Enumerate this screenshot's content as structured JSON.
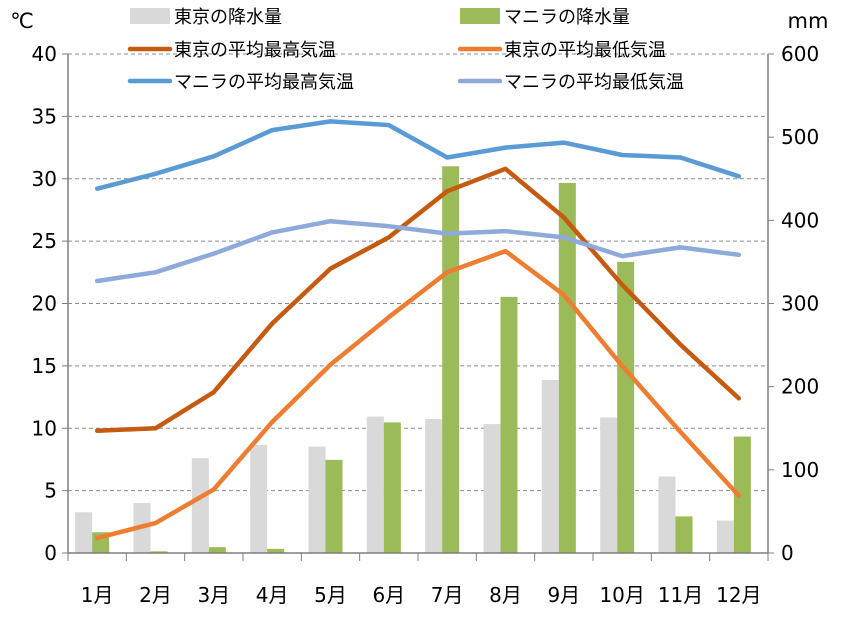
{
  "chart_data": {
    "type": "bar",
    "left_unit": "℃",
    "right_unit": "mm",
    "categories": [
      "1月",
      "2月",
      "3月",
      "4月",
      "5月",
      "6月",
      "7月",
      "8月",
      "9月",
      "10月",
      "11月",
      "12月"
    ],
    "left_axis": {
      "min": 0,
      "max": 40,
      "ticks": [
        0,
        5,
        10,
        15,
        20,
        25,
        30,
        35,
        40
      ]
    },
    "right_axis": {
      "min": 0,
      "max": 600,
      "ticks": [
        0,
        100,
        200,
        300,
        400,
        500,
        600
      ]
    },
    "grid": true,
    "legend_position": "top",
    "bar_series": [
      {
        "name": "東京の降水量",
        "color": "#d9d9d9",
        "axis": "right",
        "values": [
          49,
          60,
          114,
          130,
          128,
          164,
          161,
          155,
          208,
          163,
          92,
          39
        ]
      },
      {
        "name": "マニラの降水量",
        "color": "#9bbb59",
        "axis": "right",
        "values": [
          25,
          2,
          7,
          5,
          112,
          157,
          465,
          308,
          445,
          350,
          44,
          140
        ]
      }
    ],
    "line_series": [
      {
        "name": "東京の平均最高気温",
        "color": "#c55a11",
        "axis": "left",
        "values": [
          9.8,
          10.0,
          12.9,
          18.4,
          22.8,
          25.3,
          29.0,
          30.8,
          26.9,
          21.5,
          16.7,
          12.4
        ]
      },
      {
        "name": "東京の平均最低気温",
        "color": "#ed7d31",
        "axis": "left",
        "values": [
          1.2,
          2.4,
          5.1,
          10.5,
          15.1,
          18.9,
          22.5,
          24.2,
          20.7,
          15.0,
          9.7,
          4.6
        ]
      },
      {
        "name": "マニラの平均最高気温",
        "color": "#5b9bd5",
        "axis": "left",
        "values": [
          29.2,
          30.4,
          31.8,
          33.9,
          34.6,
          34.3,
          31.7,
          32.5,
          32.9,
          31.9,
          31.7,
          30.2
        ]
      },
      {
        "name": "マニラの平均最低気温",
        "color": "#8eaadb",
        "axis": "left",
        "values": [
          21.8,
          22.5,
          24.0,
          25.7,
          26.6,
          26.2,
          25.6,
          25.8,
          25.3,
          23.8,
          24.5,
          23.9
        ]
      }
    ]
  }
}
